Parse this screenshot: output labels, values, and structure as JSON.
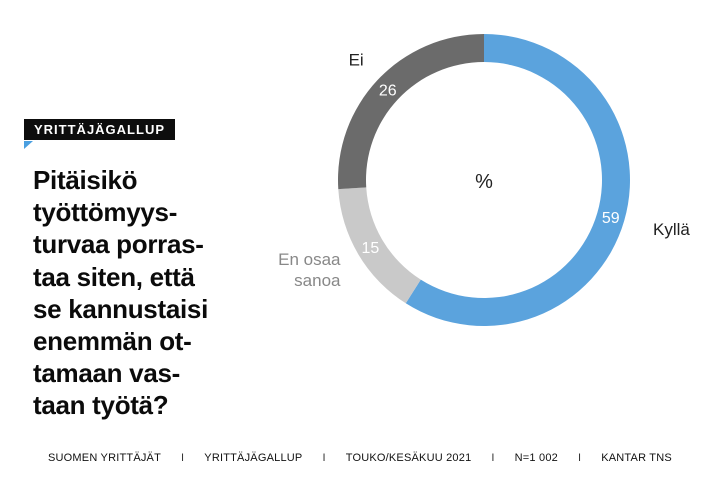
{
  "badge": {
    "label": "YRITTÄJÄGALLUP"
  },
  "question": "Pitäisikö\ntyöttömyys-\nturvaa porras-\ntaa siten, että\nse kannustaisi\nenemmän ot-\ntamaan vas-\ntaan työtä?",
  "chart_data": {
    "type": "pie",
    "donut": true,
    "center_label": "%",
    "slices": [
      {
        "name": "Kyllä",
        "value": 59,
        "color": "#5ba3dd",
        "label_color": "#222222"
      },
      {
        "name": "En osaa\nsanoa",
        "value": 15,
        "color": "#c9c9c9",
        "label_color": "#888888"
      },
      {
        "name": "Ei",
        "value": 26,
        "color": "#6b6b6b",
        "label_color": "#222222"
      }
    ]
  },
  "footer": {
    "items": [
      "SUOMEN YRITTÄJÄT",
      "YRITTÄJÄGALLUP",
      "TOUKO/KESÄKUU 2021",
      "N=1 002",
      "KANTAR TNS"
    ],
    "separator": "I"
  }
}
